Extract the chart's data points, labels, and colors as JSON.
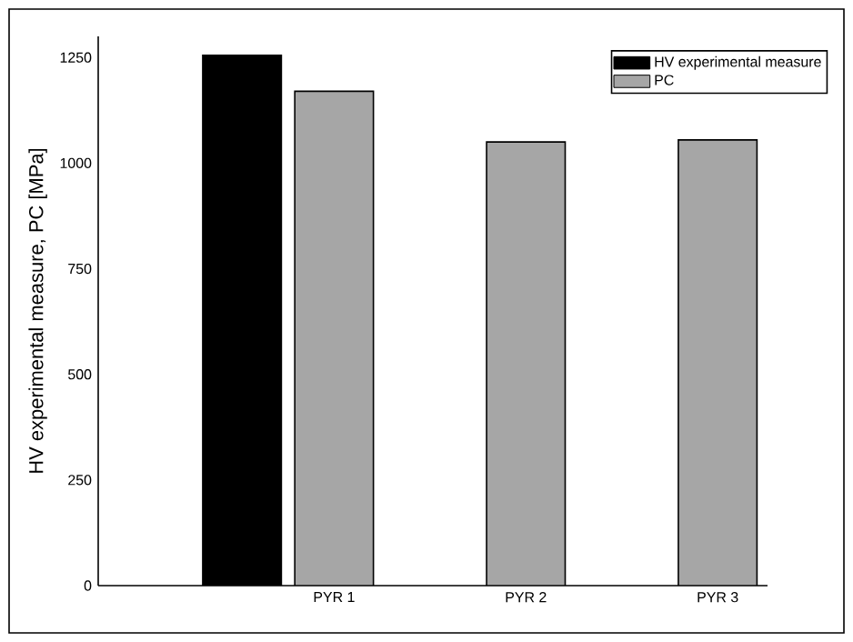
{
  "chart_data": {
    "type": "bar",
    "ylabel": "HV experimental measure, PC [MPa]",
    "categories": [
      "PYR 1",
      "PYR 2",
      "PYR 3"
    ],
    "series": [
      {
        "name": "HV experimental measure",
        "color": "#000000",
        "values": [
          1255,
          null,
          null
        ]
      },
      {
        "name": "PC",
        "color": "#a6a6a6",
        "values": [
          1170,
          1050,
          1055
        ]
      }
    ],
    "ylim": [
      0,
      1300
    ],
    "yticks": [
      0,
      250,
      500,
      750,
      1000,
      1250
    ],
    "legend": "top right",
    "grid": false
  }
}
